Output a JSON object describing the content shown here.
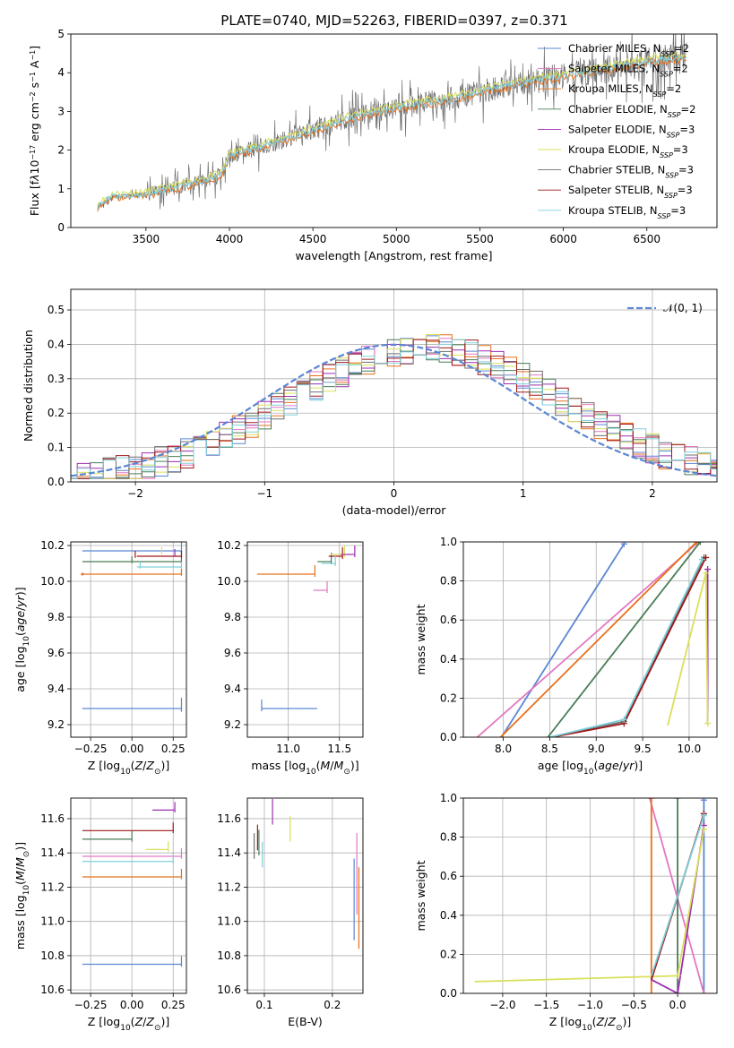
{
  "title": "PLATE=0740, MJD=52263, FIBERID=0397, z=0.371",
  "colors": {
    "Chabrier MILES": "#5b86d4",
    "Salpeter MILES": "#e377c2",
    "Kroupa MILES": "#e8701c",
    "Chabrier ELODIE": "#4a7d55",
    "Salpeter ELODIE": "#9b2fb0",
    "Kroupa ELODIE": "#d9e05a",
    "Chabrier STELIB": "#6f6f6f",
    "Salpeter STELIB": "#a01818",
    "Kroupa STELIB": "#7ed0dc",
    "gauss": "#5b86d4",
    "grid": "#b0b0b0"
  },
  "chart_data": [
    {
      "id": "spectrum",
      "type": "line",
      "xlabel": "wavelength [Angstrom, rest frame]",
      "ylabel_html": "Flux [f<tspan font-style='italic'>λ</tspan>10<tspan baseline-shift='super' font-size='8'>−17</tspan> erg cm<tspan baseline-shift='super' font-size='8'>−2</tspan> s<tspan baseline-shift='super' font-size='8'>−1</tspan> A<tspan baseline-shift='super' font-size='8'>−1</tspan>]",
      "xlim": [
        3050,
        6920
      ],
      "ylim": [
        0,
        5
      ],
      "xticks": [
        3500,
        4000,
        4500,
        5000,
        5500,
        6000,
        6500
      ],
      "yticks": [
        0,
        1,
        2,
        3,
        4,
        5
      ],
      "grid": false,
      "legend_position": "upper right",
      "legend": [
        {
          "label": "Chabrier MILES, N",
          "sub": "SSP",
          "tail": "=2",
          "color_key": "Chabrier MILES"
        },
        {
          "label": "Salpeter MILES, N",
          "sub": "SSP",
          "tail": "=2",
          "color_key": "Salpeter MILES"
        },
        {
          "label": "Kroupa MILES, N",
          "sub": "SSP",
          "tail": "=2",
          "color_key": "Kroupa MILES"
        },
        {
          "label": "Chabrier ELODIE, N",
          "sub": "SSP",
          "tail": "=2",
          "color_key": "Chabrier ELODIE"
        },
        {
          "label": "Salpeter ELODIE, N",
          "sub": "SSP",
          "tail": "=3",
          "color_key": "Salpeter ELODIE"
        },
        {
          "label": "Kroupa ELODIE, N",
          "sub": "SSP",
          "tail": "=3",
          "color_key": "Kroupa ELODIE"
        },
        {
          "label": "Chabrier STELIB, N",
          "sub": "SSP",
          "tail": "=3",
          "color_key": "Chabrier STELIB"
        },
        {
          "label": "Salpeter STELIB, N",
          "sub": "SSP",
          "tail": "=3",
          "color_key": "Salpeter STELIB"
        },
        {
          "label": "Kroupa STELIB, N",
          "sub": "SSP",
          "tail": "=3",
          "color_key": "Kroupa STELIB"
        }
      ],
      "data_range": [
        3210,
        6740
      ],
      "continuum": [
        [
          3210,
          0.55
        ],
        [
          3300,
          0.8
        ],
        [
          3500,
          0.85
        ],
        [
          3650,
          1.0
        ],
        [
          3800,
          1.15
        ],
        [
          3950,
          1.35
        ],
        [
          4000,
          1.85
        ],
        [
          4200,
          2.1
        ],
        [
          4500,
          2.5
        ],
        [
          4700,
          2.8
        ],
        [
          5000,
          3.1
        ],
        [
          5300,
          3.3
        ],
        [
          5600,
          3.6
        ],
        [
          5900,
          3.85
        ],
        [
          6200,
          4.05
        ],
        [
          6500,
          4.3
        ],
        [
          6740,
          4.4
        ]
      ]
    },
    {
      "id": "residuals",
      "type": "line",
      "xlabel": "(data-model)/error",
      "ylabel": "Normed distribution",
      "xlim": [
        -2.5,
        2.5
      ],
      "ylim": [
        0,
        0.56
      ],
      "xticks": [
        -2,
        -1,
        0,
        1,
        2
      ],
      "yticks": [
        0.0,
        0.1,
        0.2,
        0.3,
        0.4,
        0.5
      ],
      "grid": true,
      "legend_position": "upper right",
      "legend": [
        {
          "label": "𝒩(0, 1)",
          "color_key": "gauss"
        }
      ],
      "series_keys": [
        "Chabrier MILES",
        "Salpeter MILES",
        "Kroupa MILES",
        "Chabrier ELODIE",
        "Salpeter ELODIE",
        "Kroupa ELODIE",
        "Chabrier STELIB",
        "Salpeter STELIB",
        "Kroupa STELIB"
      ]
    },
    {
      "id": "age_vs_Z",
      "type": "scatter",
      "xlabel_html": "Z [log<tspan baseline-shift='sub' font-size='9'>10</tspan>(<tspan font-style='italic'>Z</tspan>/<tspan font-style='italic'>Z</tspan><tspan baseline-shift='sub' font-size='9'>⊙</tspan>)]",
      "ylabel_html": "age  [log<tspan baseline-shift='sub' font-size='9'>10</tspan>(<tspan font-style='italic'>age</tspan>/<tspan font-style='italic'>yr</tspan>)]",
      "xlim": [
        -0.37,
        0.33
      ],
      "ylim": [
        9.13,
        10.22
      ],
      "xticks": [
        -0.25,
        0.0,
        0.25
      ],
      "xticklabels": [
        "−0.25",
        "0.00",
        "0.25"
      ],
      "yticks": [
        9.2,
        9.4,
        9.6,
        9.8,
        10.0,
        10.2
      ],
      "grid": true,
      "points": [
        {
          "key": "Chabrier MILES",
          "x": 0.3,
          "y": 9.29
        },
        {
          "key": "Chabrier MILES",
          "x": 0.3,
          "y": 10.17
        },
        {
          "key": "Kroupa MILES",
          "x": -0.3,
          "y": 10.04
        },
        {
          "key": "Kroupa MILES",
          "x": 0.3,
          "y": 10.04
        },
        {
          "key": "Chabrier ELODIE",
          "x": 0.0,
          "y": 10.11
        },
        {
          "key": "Chabrier ELODIE",
          "x": 0.3,
          "y": 10.11
        },
        {
          "key": "Salpeter STELIB",
          "x": 0.02,
          "y": 10.14
        },
        {
          "key": "Salpeter STELIB",
          "x": 0.3,
          "y": 10.14
        },
        {
          "key": "Kroupa STELIB",
          "x": 0.05,
          "y": 10.08
        },
        {
          "key": "Kroupa STELIB",
          "x": 0.3,
          "y": 10.08
        },
        {
          "key": "Kroupa ELODIE",
          "x": 0.18,
          "y": 10.16
        },
        {
          "key": "Salpeter ELODIE",
          "x": 0.26,
          "y": 10.15
        }
      ]
    },
    {
      "id": "age_vs_mass",
      "type": "scatter",
      "xlabel_html": "mass [log<tspan baseline-shift='sub' font-size='9'>10</tspan>(<tspan font-style='italic'>M</tspan>/<tspan font-style='italic'>M</tspan><tspan baseline-shift='sub' font-size='9'>⊙</tspan>)]",
      "xlim": [
        10.6,
        11.73
      ],
      "ylim": [
        9.13,
        10.22
      ],
      "xticks": [
        11.0,
        11.5
      ],
      "yticks": [
        9.2,
        9.4,
        9.6,
        9.8,
        10.0,
        10.2
      ],
      "grid": true,
      "points": [
        {
          "key": "Chabrier MILES",
          "x": 10.74,
          "y": 9.29
        },
        {
          "key": "Kroupa MILES",
          "x": 11.26,
          "y": 10.04
        },
        {
          "key": "Chabrier ELODIE",
          "x": 11.42,
          "y": 10.11
        },
        {
          "key": "Salpeter STELIB",
          "x": 11.53,
          "y": 10.14
        },
        {
          "key": "Kroupa STELIB",
          "x": 11.46,
          "y": 10.1
        },
        {
          "key": "Kroupa ELODIE",
          "x": 11.55,
          "y": 10.15
        },
        {
          "key": "Salpeter ELODIE",
          "x": 11.65,
          "y": 10.15
        },
        {
          "key": "Salpeter MILES",
          "x": 11.38,
          "y": 9.95
        }
      ]
    },
    {
      "id": "massweight_vs_age",
      "type": "line",
      "xlabel_html": "age  [log<tspan baseline-shift='sub' font-size='9'>10</tspan>(<tspan font-style='italic'>age</tspan>/<tspan font-style='italic'>yr</tspan>)]",
      "ylabel": "mass weight",
      "xlim": [
        7.57,
        10.3
      ],
      "ylim": [
        0,
        1.0
      ],
      "xticks": [
        8.0,
        8.5,
        9.0,
        9.5,
        10.0
      ],
      "yticks": [
        0.0,
        0.2,
        0.4,
        0.6,
        0.8,
        1.0
      ],
      "grid": true,
      "series": [
        {
          "key": "Chabrier MILES",
          "x": [
            7.98,
            9.3
          ],
          "y": [
            0.0,
            0.99
          ]
        },
        {
          "key": "Salpeter MILES",
          "x": [
            7.72,
            10.1
          ],
          "y": [
            0.0,
            1.0
          ]
        },
        {
          "key": "Kroupa MILES",
          "x": [
            7.97,
            10.08
          ],
          "y": [
            0.0,
            1.0
          ]
        },
        {
          "key": "Chabrier ELODIE",
          "x": [
            8.48,
            10.12
          ],
          "y": [
            0.0,
            1.0
          ]
        },
        {
          "key": "Salpeter ELODIE",
          "x": [
            10.2,
            10.2
          ],
          "y": [
            0.07,
            0.86
          ]
        },
        {
          "key": "Kroupa ELODIE",
          "x": [
            9.77,
            10.18,
            10.2
          ],
          "y": [
            0.06,
            0.84,
            0.07
          ]
        },
        {
          "key": "Chabrier STELIB",
          "x": [
            8.5,
            9.3,
            10.16
          ],
          "y": [
            0.0,
            0.08,
            0.92
          ]
        },
        {
          "key": "Salpeter STELIB",
          "x": [
            8.52,
            9.3,
            10.18
          ],
          "y": [
            0.0,
            0.07,
            0.92
          ]
        },
        {
          "key": "Kroupa STELIB",
          "x": [
            8.5,
            9.3,
            10.14
          ],
          "y": [
            0.0,
            0.09,
            0.91
          ]
        }
      ]
    },
    {
      "id": "mass_vs_Z",
      "type": "scatter",
      "xlabel_html": "Z [log<tspan baseline-shift='sub' font-size='9'>10</tspan>(<tspan font-style='italic'>Z</tspan>/<tspan font-style='italic'>Z</tspan><tspan baseline-shift='sub' font-size='9'>⊙</tspan>)]",
      "ylabel_html": "mass [log<tspan baseline-shift='sub' font-size='9'>10</tspan>(<tspan font-style='italic'>M</tspan>/<tspan font-style='italic'>M</tspan><tspan baseline-shift='sub' font-size='9'>⊙</tspan>)]",
      "xlim": [
        -0.37,
        0.33
      ],
      "ylim": [
        10.58,
        11.72
      ],
      "xticks": [
        -0.25,
        0.0,
        0.25
      ],
      "xticklabels": [
        "−0.25",
        "0.00",
        "0.25"
      ],
      "yticks": [
        10.6,
        10.8,
        11.0,
        11.2,
        11.4,
        11.6
      ],
      "grid": true,
      "points": [
        {
          "key": "Chabrier MILES",
          "x": 0.3,
          "y": 10.75
        },
        {
          "key": "Kroupa MILES",
          "x": 0.3,
          "y": 11.26
        },
        {
          "key": "Salpeter MILES",
          "x": 0.3,
          "y": 11.38
        },
        {
          "key": "Chabrier ELODIE",
          "x": 0.0,
          "y": 11.48
        },
        {
          "key": "Salpeter STELIB",
          "x": 0.25,
          "y": 11.53
        },
        {
          "key": "Kroupa STELIB",
          "x": 0.25,
          "y": 11.35
        },
        {
          "key": "Salpeter ELODIE",
          "x": 0.26,
          "y": 11.65
        },
        {
          "key": "Kroupa ELODIE",
          "x": 0.22,
          "y": 11.42
        }
      ]
    },
    {
      "id": "mass_vs_EBV",
      "type": "scatter",
      "xlabel": "E(B-V)",
      "xlim": [
        0.075,
        0.245
      ],
      "ylim": [
        10.58,
        11.72
      ],
      "xticks": [
        0.1,
        0.2
      ],
      "yticks": [
        10.6,
        10.8,
        11.0,
        11.2,
        11.4,
        11.6
      ],
      "grid": true,
      "points": [
        {
          "key": "Chabrier STELIB",
          "x": 0.085,
          "y": 11.4
        },
        {
          "key": "Chabrier ELODIE",
          "x": 0.092,
          "y": 11.42
        },
        {
          "key": "Kroupa STELIB",
          "x": 0.097,
          "y": 11.35
        },
        {
          "key": "Salpeter STELIB",
          "x": 0.09,
          "y": 11.45
        },
        {
          "key": "Salpeter ELODIE",
          "x": 0.112,
          "y": 11.6
        },
        {
          "key": "Kroupa ELODIE",
          "x": 0.138,
          "y": 11.5
        },
        {
          "key": "Chabrier MILES",
          "x": 0.232,
          "y": 11.0
        },
        {
          "key": "Salpeter MILES",
          "x": 0.236,
          "y": 11.15
        },
        {
          "key": "Kroupa MILES",
          "x": 0.239,
          "y": 10.95
        }
      ]
    },
    {
      "id": "massweight_vs_Z",
      "type": "line",
      "xlabel_html": "Z [log<tspan baseline-shift='sub' font-size='9'>10</tspan>(<tspan font-style='italic'>Z</tspan>/<tspan font-style='italic'>Z</tspan><tspan baseline-shift='sub' font-size='9'>⊙</tspan>)]",
      "ylabel": "mass weight",
      "xlim": [
        -2.45,
        0.45
      ],
      "ylim": [
        0,
        1.0
      ],
      "xticks": [
        -2.0,
        -1.5,
        -1.0,
        -0.5,
        0.0
      ],
      "xticklabels": [
        "−2.0",
        "−1.5",
        "−1.0",
        "−0.5",
        "0.0"
      ],
      "yticks": [
        0.0,
        0.2,
        0.4,
        0.6,
        0.8,
        1.0
      ],
      "grid": true,
      "series": [
        {
          "key": "Chabrier MILES",
          "x": [
            0.3,
            0.3
          ],
          "y": [
            0.0,
            0.99
          ]
        },
        {
          "key": "Salpeter MILES",
          "x": [
            -0.32,
            0.3
          ],
          "y": [
            1.0,
            0.0
          ]
        },
        {
          "key": "Kroupa MILES",
          "x": [
            -0.3,
            -0.3
          ],
          "y": [
            0.0,
            1.0
          ]
        },
        {
          "key": "Chabrier ELODIE",
          "x": [
            0.0,
            0.0
          ],
          "y": [
            0.0,
            1.0
          ]
        },
        {
          "key": "Salpeter ELODIE",
          "x": [
            -0.3,
            0.0,
            0.3
          ],
          "y": [
            0.07,
            0.0,
            0.86
          ]
        },
        {
          "key": "Kroupa ELODIE",
          "x": [
            -2.32,
            0.0,
            0.3
          ],
          "y": [
            0.06,
            0.09,
            0.84
          ]
        },
        {
          "key": "Chabrier STELIB",
          "x": [
            -0.3,
            0.3
          ],
          "y": [
            0.07,
            0.92
          ]
        },
        {
          "key": "Salpeter STELIB",
          "x": [
            -0.3,
            0.3
          ],
          "y": [
            0.07,
            0.92
          ]
        },
        {
          "key": "Kroupa STELIB",
          "x": [
            -0.3,
            0.3
          ],
          "y": [
            0.09,
            0.91
          ]
        }
      ]
    }
  ]
}
